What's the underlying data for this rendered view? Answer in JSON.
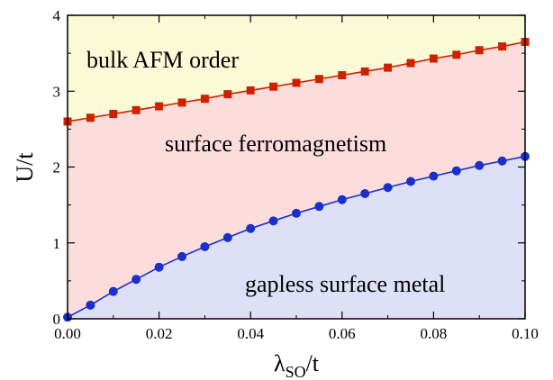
{
  "chart_data": {
    "type": "area",
    "xlabel": "λ",
    "xlabel_sub": "SO",
    "xlabel_suffix": "/t",
    "ylabel": "U/t",
    "xlim": [
      0.0,
      0.1
    ],
    "ylim": [
      0,
      4
    ],
    "x_ticks": [
      "0.00",
      "0.02",
      "0.04",
      "0.06",
      "0.08",
      "0.10"
    ],
    "y_ticks": [
      "0",
      "1",
      "2",
      "3",
      "4"
    ],
    "grid": false,
    "series": [
      {
        "marker": "square",
        "color": "#cc2200",
        "x": [
          0.0,
          0.005,
          0.01,
          0.015,
          0.02,
          0.025,
          0.03,
          0.035,
          0.04,
          0.045,
          0.05,
          0.055,
          0.06,
          0.065,
          0.07,
          0.075,
          0.08,
          0.085,
          0.09,
          0.095,
          0.1
        ],
        "y": [
          2.6,
          2.65,
          2.7,
          2.75,
          2.8,
          2.85,
          2.9,
          2.96,
          3.01,
          3.06,
          3.11,
          3.16,
          3.21,
          3.26,
          3.31,
          3.37,
          3.43,
          3.48,
          3.54,
          3.59,
          3.65
        ]
      },
      {
        "marker": "circle",
        "color": "#1a2fcc",
        "x": [
          0.0,
          0.005,
          0.01,
          0.015,
          0.02,
          0.025,
          0.03,
          0.035,
          0.04,
          0.045,
          0.05,
          0.055,
          0.06,
          0.065,
          0.07,
          0.075,
          0.08,
          0.085,
          0.09,
          0.095,
          0.1
        ],
        "y": [
          0.02,
          0.18,
          0.36,
          0.52,
          0.68,
          0.82,
          0.95,
          1.07,
          1.19,
          1.29,
          1.39,
          1.48,
          1.57,
          1.65,
          1.73,
          1.81,
          1.88,
          1.95,
          2.02,
          2.08,
          2.14
        ]
      }
    ],
    "regions": [
      {
        "label": "bulk AFM order",
        "color": "#fafad7"
      },
      {
        "label": "surface ferromagnetism",
        "color": "#fddcdc"
      },
      {
        "label": "gapless surface metal",
        "color": "#dde0f7"
      }
    ]
  }
}
